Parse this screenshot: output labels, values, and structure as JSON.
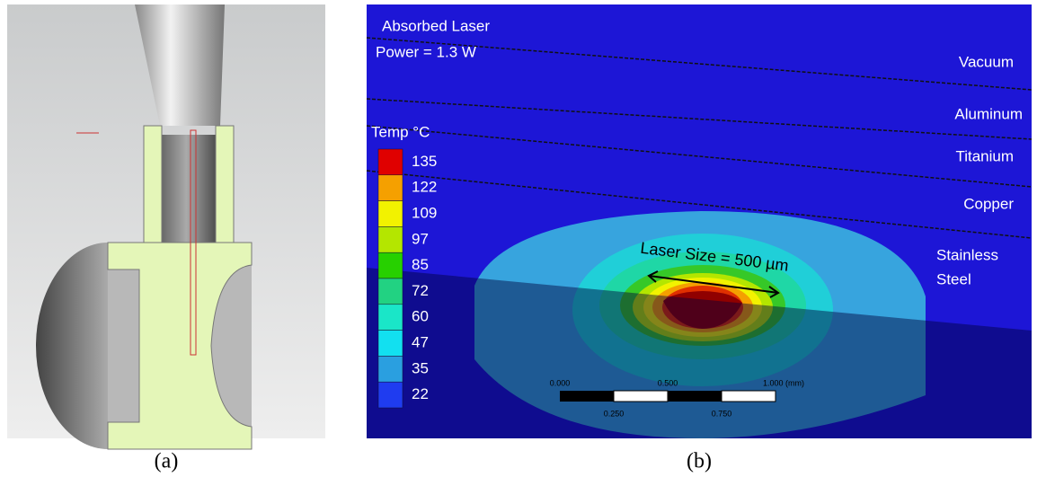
{
  "panel_a": {
    "label": "(a)"
  },
  "panel_b": {
    "label": "(b)",
    "title_lines": [
      "Absorbed Laser",
      "Power = 1.3 W"
    ],
    "layers": [
      "Vacuum",
      "Aluminum",
      "Titanium",
      "Copper",
      {
        "lines": [
          "Stainless",
          "Steel"
        ]
      }
    ],
    "legend": {
      "title": "Temp °C",
      "items": [
        {
          "label": 135,
          "color": "#e00000"
        },
        {
          "label": 122,
          "color": "#f5a000"
        },
        {
          "label": 109,
          "color": "#f2f200"
        },
        {
          "label": 97,
          "color": "#b4e600"
        },
        {
          "label": 85,
          "color": "#27d000"
        },
        {
          "label": 72,
          "color": "#22d282"
        },
        {
          "label": 60,
          "color": "#1ae6c8"
        },
        {
          "label": 47,
          "color": "#12e0f0"
        },
        {
          "label": 35,
          "color": "#2a9fe0"
        },
        {
          "label": 22,
          "color": "#1f3cf0"
        }
      ]
    },
    "annotation": "Laser Size = 500 µm",
    "scale_bar": {
      "top_labels": [
        "0.000",
        "0.500",
        "1.000 (mm)"
      ],
      "bottom_labels": [
        "0.250",
        "0.750"
      ]
    }
  }
}
